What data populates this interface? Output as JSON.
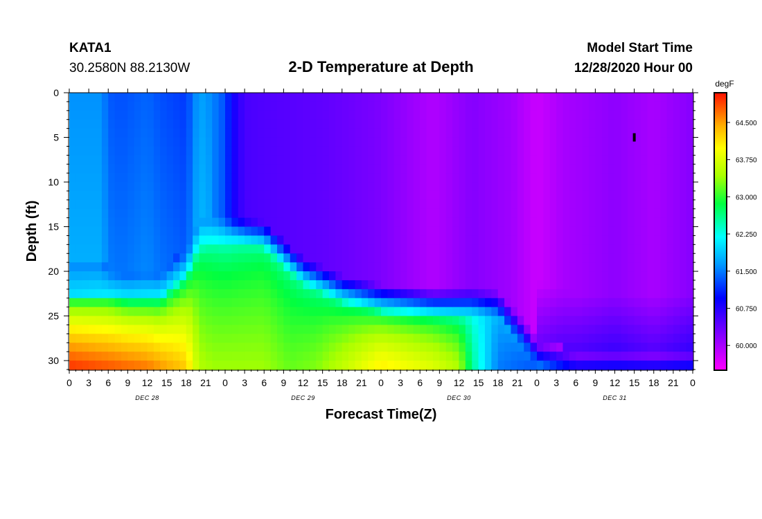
{
  "header": {
    "station": "KATA1",
    "location": "30.2580N 88.2130W",
    "title": "2-D Temperature at Depth",
    "model_label": "Model Start Time",
    "model_time": "12/28/2020 Hour 00"
  },
  "chart_data": {
    "type": "heatmap",
    "title": "2-D Temperature at Depth",
    "xlabel": "Forecast Time(Z)",
    "ylabel": "Depth (ft)",
    "x_range": [
      0,
      96
    ],
    "y_range": [
      0,
      31
    ],
    "x_ticks": [
      "0",
      "3",
      "6",
      "9",
      "12",
      "15",
      "18",
      "21",
      "0",
      "3",
      "6",
      "9",
      "12",
      "15",
      "18",
      "21",
      "0",
      "3",
      "6",
      "9",
      "12",
      "15",
      "18",
      "21",
      "0",
      "3",
      "6",
      "9",
      "12",
      "15",
      "18",
      "21",
      "0"
    ],
    "x_tick_hours": [
      0,
      3,
      6,
      9,
      12,
      15,
      18,
      21,
      24,
      27,
      30,
      33,
      36,
      39,
      42,
      45,
      48,
      51,
      54,
      57,
      60,
      63,
      66,
      69,
      72,
      75,
      78,
      81,
      84,
      87,
      90,
      93,
      96
    ],
    "y_ticks": [
      "0",
      "5",
      "10",
      "15",
      "20",
      "25",
      "30"
    ],
    "y_tick_values": [
      0,
      5,
      10,
      15,
      20,
      25,
      30
    ],
    "date_labels": [
      {
        "label": "DEC 28",
        "hour": 12
      },
      {
        "label": "DEC 29",
        "hour": 36
      },
      {
        "label": "DEC 30",
        "hour": 60
      },
      {
        "label": "DEC 31",
        "hour": 84
      }
    ],
    "colorbar": {
      "units": "degF",
      "min": 59.5,
      "max": 65.1,
      "tick_labels": [
        "64.500",
        "63.750",
        "63.000",
        "62.250",
        "61.500",
        "60.750",
        "60.000"
      ],
      "tick_values": [
        64.5,
        63.75,
        63.0,
        62.25,
        61.5,
        60.75,
        60.0
      ]
    },
    "marker": {
      "hour": 87,
      "depth": 5
    }
  }
}
